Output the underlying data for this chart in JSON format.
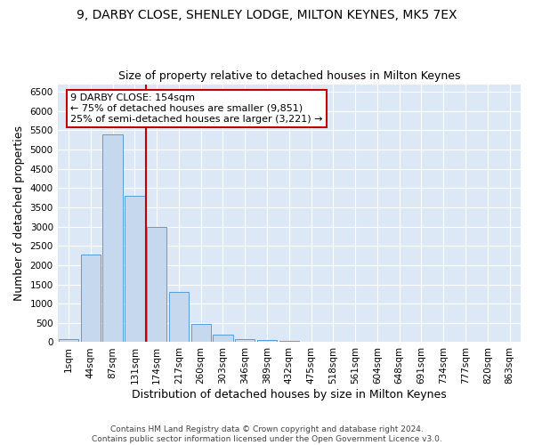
{
  "title": "9, DARBY CLOSE, SHENLEY LODGE, MILTON KEYNES, MK5 7EX",
  "subtitle": "Size of property relative to detached houses in Milton Keynes",
  "xlabel": "Distribution of detached houses by size in Milton Keynes",
  "ylabel": "Number of detached properties",
  "footer_line1": "Contains HM Land Registry data © Crown copyright and database right 2024.",
  "footer_line2": "Contains public sector information licensed under the Open Government Licence v3.0.",
  "bar_labels": [
    "1sqm",
    "44sqm",
    "87sqm",
    "131sqm",
    "174sqm",
    "217sqm",
    "260sqm",
    "303sqm",
    "346sqm",
    "389sqm",
    "432sqm",
    "475sqm",
    "518sqm",
    "561sqm",
    "604sqm",
    "648sqm",
    "691sqm",
    "734sqm",
    "777sqm",
    "820sqm",
    "863sqm"
  ],
  "bar_values": [
    75,
    2280,
    5400,
    3800,
    3000,
    1310,
    480,
    185,
    85,
    55,
    25,
    15,
    0,
    0,
    0,
    0,
    0,
    0,
    0,
    0,
    0
  ],
  "bar_color": "#c5d8ed",
  "bar_edgecolor": "#5b9bd5",
  "vline_pos": 3.5,
  "vline_color": "#c00000",
  "annotation_text": "9 DARBY CLOSE: 154sqm\n← 75% of detached houses are smaller (9,851)\n25% of semi-detached houses are larger (3,221) →",
  "ylim": [
    0,
    6700
  ],
  "yticks": [
    0,
    500,
    1000,
    1500,
    2000,
    2500,
    3000,
    3500,
    4000,
    4500,
    5000,
    5500,
    6000,
    6500
  ],
  "plot_bg_color": "#dce8f5",
  "grid_color": "#ffffff",
  "title_fontsize": 10,
  "subtitle_fontsize": 9,
  "tick_fontsize": 7.5,
  "ylabel_fontsize": 9,
  "xlabel_fontsize": 9,
  "footer_fontsize": 6.5
}
